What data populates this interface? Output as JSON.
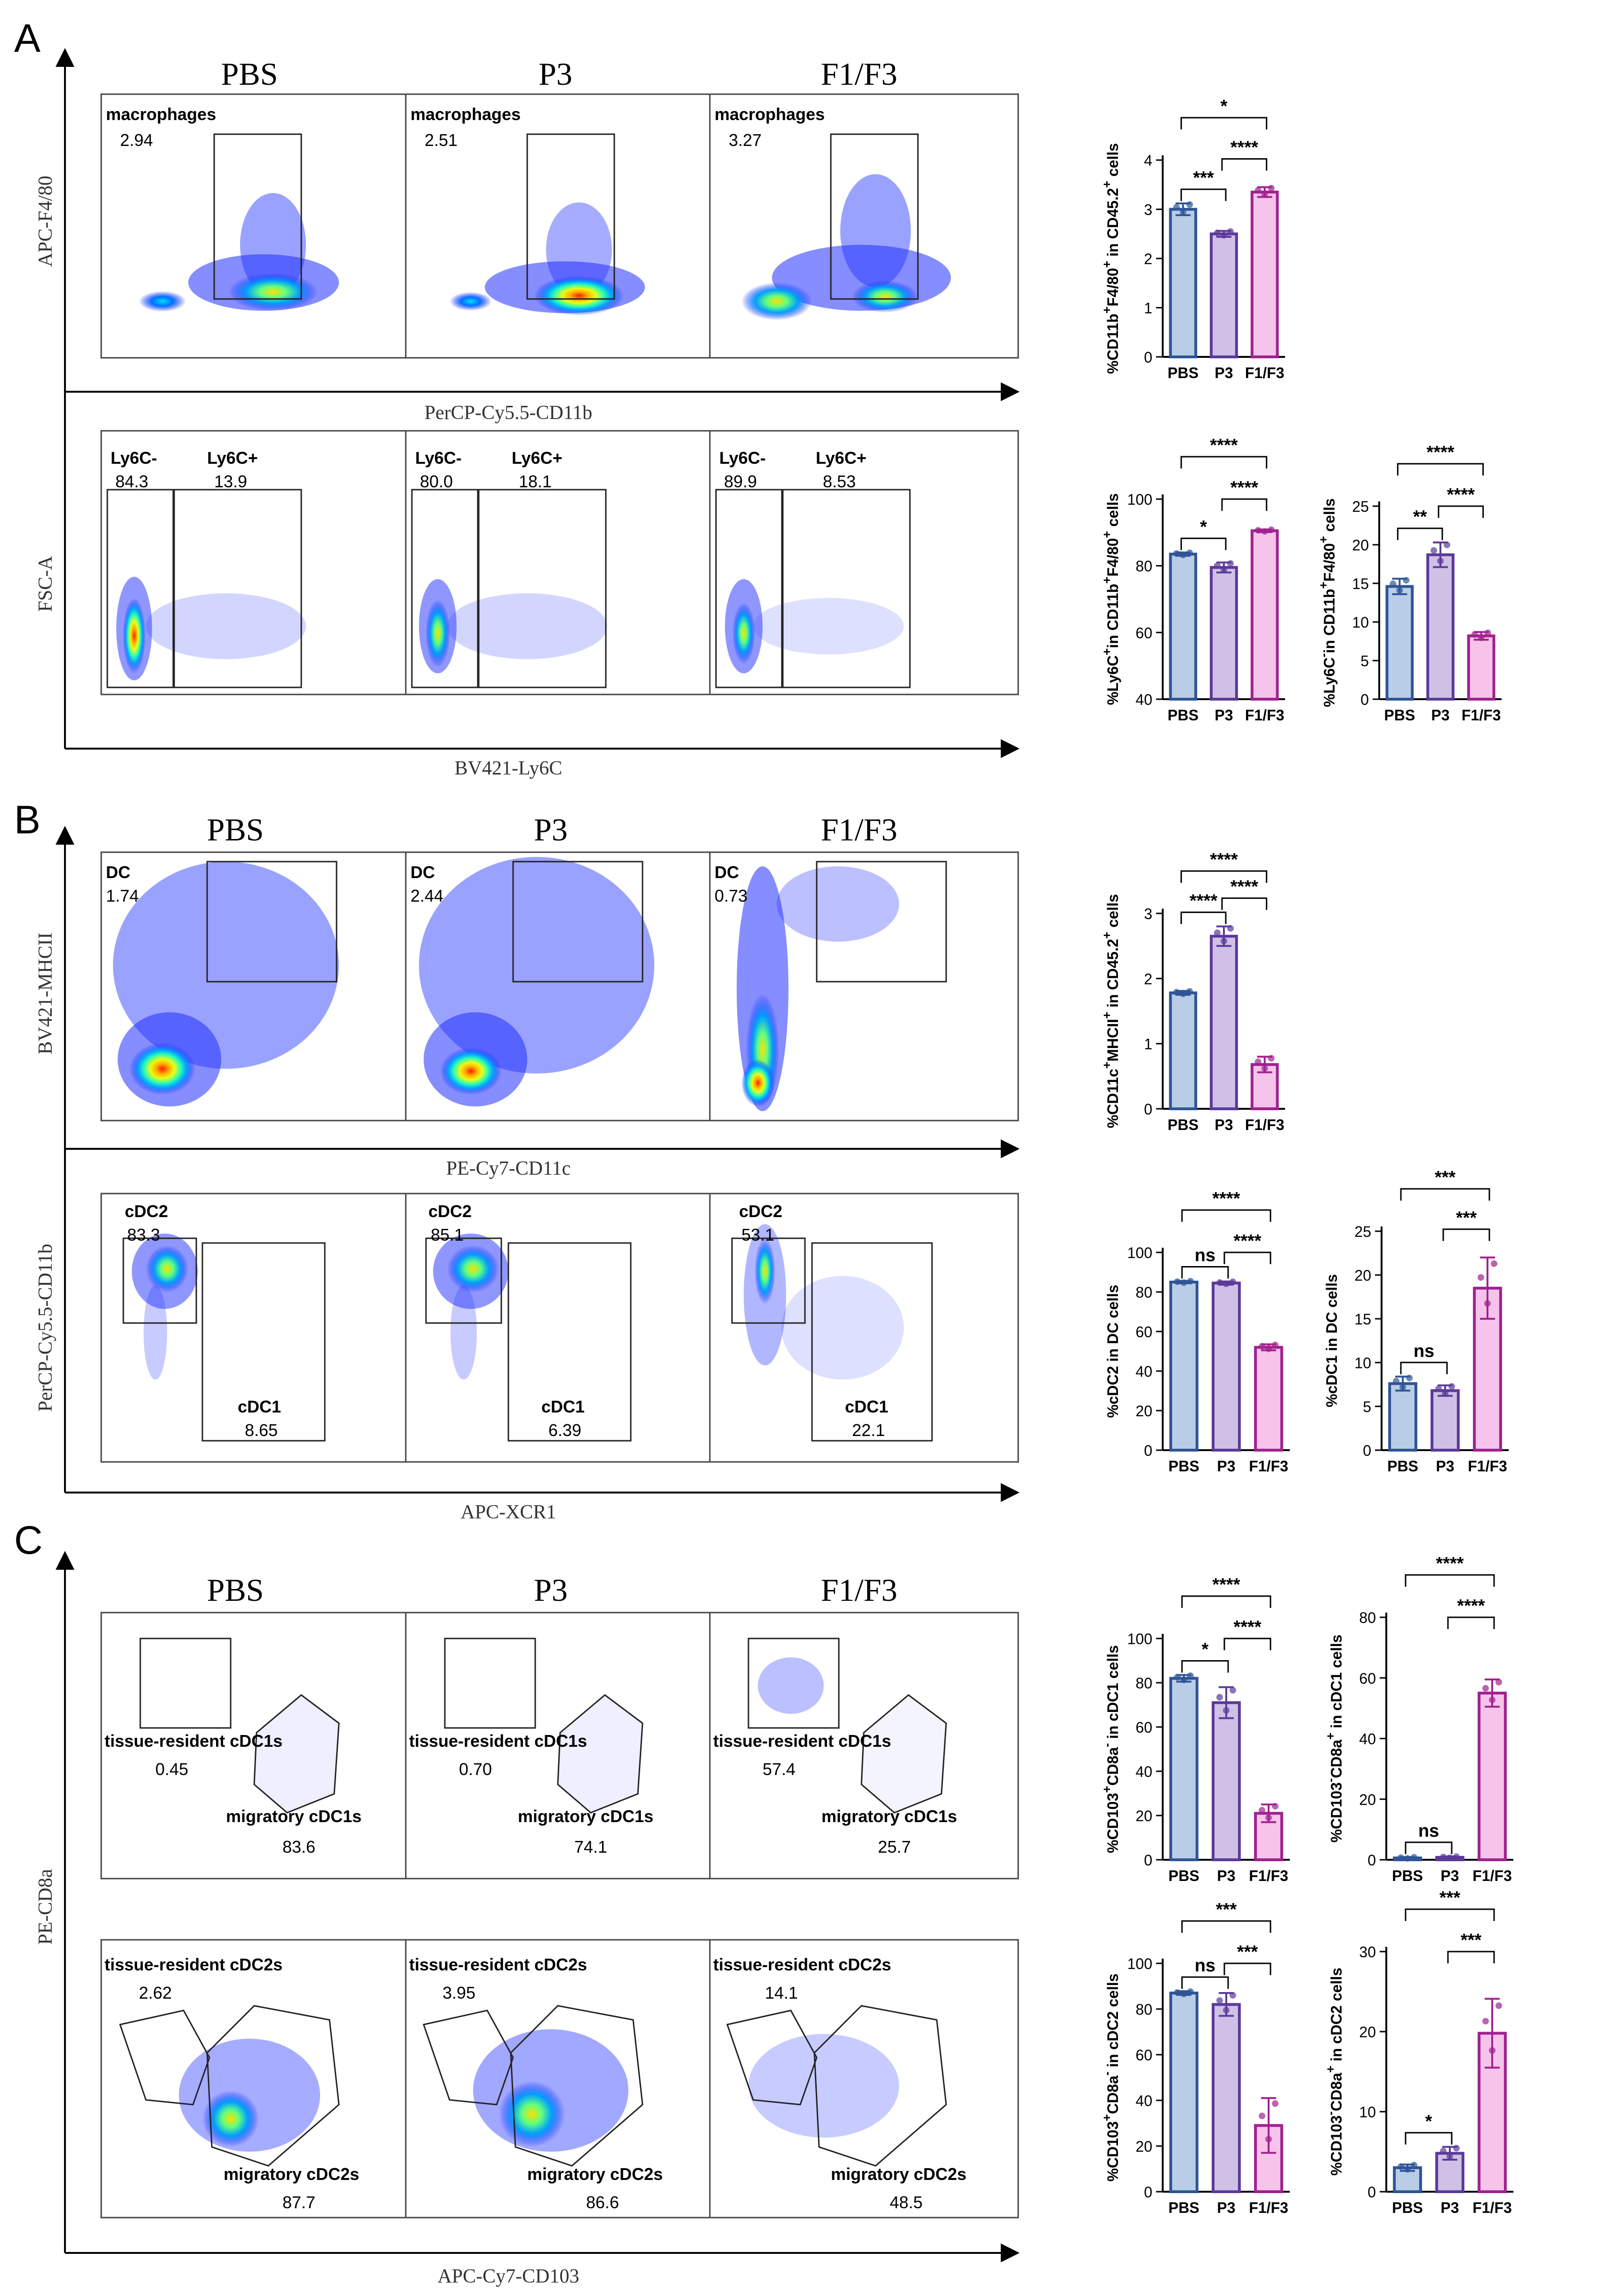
{
  "panels": [
    {
      "letter": "A",
      "flow_rows": [
        {
          "y_label": "APC-F4/80",
          "x_label": "PerCP-Cy5.5-CD11b",
          "plots": [
            {
              "title": "PBS",
              "gates": [
                {
                  "name": "macrophages",
                  "value": "2.94"
                }
              ]
            },
            {
              "title": "P3",
              "gates": [
                {
                  "name": "macrophages",
                  "value": "2.51"
                }
              ]
            },
            {
              "title": "F1/F3",
              "gates": [
                {
                  "name": "macrophages",
                  "value": "3.27"
                }
              ]
            }
          ]
        },
        {
          "y_label": "FSC-A",
          "x_label": "BV421-Ly6C",
          "plots": [
            {
              "title": "",
              "gates": [
                {
                  "name": "Ly6C-",
                  "value": "84.3"
                },
                {
                  "name": "Ly6C+",
                  "value": "13.9"
                }
              ]
            },
            {
              "title": "",
              "gates": [
                {
                  "name": "Ly6C-",
                  "value": "80.0"
                },
                {
                  "name": "Ly6C+",
                  "value": "18.1"
                }
              ]
            },
            {
              "title": "",
              "gates": [
                {
                  "name": "Ly6C-",
                  "value": "89.9"
                },
                {
                  "name": "Ly6C+",
                  "value": "8.53"
                }
              ]
            }
          ]
        }
      ]
    },
    {
      "letter": "B",
      "flow_rows": [
        {
          "y_label": "BV421-MHCII",
          "x_label": "PE-Cy7-CD11c",
          "plots": [
            {
              "title": "PBS",
              "gates": [
                {
                  "name": "DC",
                  "value": "1.74"
                }
              ]
            },
            {
              "title": "P3",
              "gates": [
                {
                  "name": "DC",
                  "value": "2.44"
                }
              ]
            },
            {
              "title": "F1/F3",
              "gates": [
                {
                  "name": "DC",
                  "value": "0.73"
                }
              ]
            }
          ]
        },
        {
          "y_label": "PerCP-Cy5.5-CD11b",
          "x_label": "APC-XCR1",
          "plots": [
            {
              "title": "",
              "gates": [
                {
                  "name": "cDC2",
                  "value": "83.3"
                },
                {
                  "name": "cDC1",
                  "value": "8.65"
                }
              ]
            },
            {
              "title": "",
              "gates": [
                {
                  "name": "cDC2",
                  "value": "85.1"
                },
                {
                  "name": "cDC1",
                  "value": "6.39"
                }
              ]
            },
            {
              "title": "",
              "gates": [
                {
                  "name": "cDC2",
                  "value": "53.1"
                },
                {
                  "name": "cDC1",
                  "value": "22.1"
                }
              ]
            }
          ]
        }
      ]
    },
    {
      "letter": "C",
      "y_label": "PE-CD8a",
      "x_label": "APC-Cy7-CD103",
      "flow_rows": [
        {
          "plots": [
            {
              "title": "PBS",
              "gates": [
                {
                  "name": "tissue-resident cDC1s",
                  "value": "0.45"
                },
                {
                  "name": "migratory cDC1s",
                  "value": "83.6"
                }
              ]
            },
            {
              "title": "P3",
              "gates": [
                {
                  "name": "tissue-resident cDC1s",
                  "value": "0.70"
                },
                {
                  "name": "migratory cDC1s",
                  "value": "74.1"
                }
              ]
            },
            {
              "title": "F1/F3",
              "gates": [
                {
                  "name": "tissue-resident cDC1s",
                  "value": "57.4"
                },
                {
                  "name": "migratory cDC1s",
                  "value": "25.7"
                }
              ]
            }
          ]
        },
        {
          "plots": [
            {
              "title": "",
              "gates": [
                {
                  "name": "tissue-resident cDC2s",
                  "value": "2.62"
                },
                {
                  "name": "migratory cDC2s",
                  "value": "87.7"
                }
              ]
            },
            {
              "title": "",
              "gates": [
                {
                  "name": "tissue-resident cDC2s",
                  "value": "3.95"
                },
                {
                  "name": "migratory cDC2s",
                  "value": "86.6"
                }
              ]
            },
            {
              "title": "",
              "gates": [
                {
                  "name": "tissue-resident cDC2s",
                  "value": "14.1"
                },
                {
                  "name": "migratory cDC2s",
                  "value": "48.5"
                }
              ]
            }
          ]
        }
      ]
    }
  ],
  "colors": {
    "PBS": {
      "fill": "#b9cde6",
      "stroke": "#2f5597"
    },
    "P3": {
      "fill": "#cfc1e6",
      "stroke": "#5b3a9a"
    },
    "F1/F3": {
      "fill": "#f6c3ea",
      "stroke": "#a0228f"
    }
  },
  "chart_data": [
    {
      "type": "bar",
      "panel": "A",
      "ylabel": "%CD11b+F4/80+ in CD45.2+ cells",
      "categories": [
        "PBS",
        "P3",
        "F1/F3"
      ],
      "values": [
        3.0,
        2.5,
        3.35
      ],
      "errors": [
        0.12,
        0.06,
        0.1
      ],
      "ylim": [
        0,
        4
      ],
      "yticks": [
        0,
        1,
        2,
        3,
        4
      ],
      "sig": [
        {
          "from": 0,
          "to": 1,
          "label": "***"
        },
        {
          "from": 1,
          "to": 2,
          "label": "****"
        },
        {
          "from": 0,
          "to": 2,
          "label": "*"
        }
      ]
    },
    {
      "type": "bar",
      "panel": "A",
      "ylabel": "%Ly6C+in CD11b+F4/80+ cells",
      "categories": [
        "PBS",
        "P3",
        "F1/F3"
      ],
      "values": [
        83.5,
        79.5,
        90.5
      ],
      "errors": [
        0.5,
        1.5,
        0.4
      ],
      "ylim": [
        40,
        100
      ],
      "yticks": [
        40,
        60,
        80,
        100
      ],
      "sig": [
        {
          "from": 0,
          "to": 1,
          "label": "*"
        },
        {
          "from": 1,
          "to": 2,
          "label": "****"
        },
        {
          "from": 0,
          "to": 2,
          "label": "****"
        }
      ]
    },
    {
      "type": "bar",
      "panel": "A",
      "ylabel": "%Ly6C-in CD11b+F4/80+ cells",
      "categories": [
        "PBS",
        "P3",
        "F1/F3"
      ],
      "values": [
        14.6,
        18.7,
        8.2
      ],
      "errors": [
        1.0,
        1.6,
        0.5
      ],
      "ylim": [
        0,
        25
      ],
      "yticks": [
        0,
        5,
        10,
        15,
        20,
        25
      ],
      "sig": [
        {
          "from": 0,
          "to": 1,
          "label": "**"
        },
        {
          "from": 1,
          "to": 2,
          "label": "****"
        },
        {
          "from": 0,
          "to": 2,
          "label": "****"
        }
      ]
    },
    {
      "type": "bar",
      "panel": "B",
      "ylabel": "%CD11c+MHCII+ in CD45.2+ cells",
      "categories": [
        "PBS",
        "P3",
        "F1/F3"
      ],
      "values": [
        1.78,
        2.65,
        0.68
      ],
      "errors": [
        0.03,
        0.15,
        0.12
      ],
      "ylim": [
        0,
        3
      ],
      "yticks": [
        0,
        1,
        2,
        3
      ],
      "sig": [
        {
          "from": 0,
          "to": 1,
          "label": "****"
        },
        {
          "from": 1,
          "to": 2,
          "label": "****"
        },
        {
          "from": 0,
          "to": 2,
          "label": "****"
        }
      ]
    },
    {
      "type": "bar",
      "panel": "B",
      "ylabel": "%cDC2 in DC cells",
      "categories": [
        "PBS",
        "P3",
        "F1/F3"
      ],
      "values": [
        85,
        84.5,
        52
      ],
      "errors": [
        0.6,
        0.8,
        1.5
      ],
      "ylim": [
        0,
        100
      ],
      "yticks": [
        0,
        20,
        40,
        60,
        80,
        100
      ],
      "sig": [
        {
          "from": 0,
          "to": 1,
          "label": "ns"
        },
        {
          "from": 1,
          "to": 2,
          "label": "****"
        },
        {
          "from": 0,
          "to": 2,
          "label": "****"
        }
      ]
    },
    {
      "type": "bar",
      "panel": "B",
      "ylabel": "%cDC1 in DC cells",
      "categories": [
        "PBS",
        "P3",
        "F1/F3"
      ],
      "values": [
        7.6,
        6.8,
        18.5
      ],
      "errors": [
        0.8,
        0.6,
        3.5
      ],
      "ylim": [
        0,
        25
      ],
      "yticks": [
        0,
        5,
        10,
        15,
        20,
        25
      ],
      "sig": [
        {
          "from": 0,
          "to": 1,
          "label": "ns"
        },
        {
          "from": 1,
          "to": 2,
          "label": "***"
        },
        {
          "from": 0,
          "to": 2,
          "label": "***"
        }
      ]
    },
    {
      "type": "bar",
      "panel": "C",
      "ylabel": "%CD103+CD8a- in cDC1 cells",
      "categories": [
        "PBS",
        "P3",
        "F1/F3"
      ],
      "values": [
        82,
        71,
        21
      ],
      "errors": [
        1.5,
        7,
        4
      ],
      "ylim": [
        0,
        100
      ],
      "yticks": [
        0,
        20,
        40,
        60,
        80,
        100
      ],
      "sig": [
        {
          "from": 0,
          "to": 1,
          "label": "*"
        },
        {
          "from": 1,
          "to": 2,
          "label": "****"
        },
        {
          "from": 0,
          "to": 2,
          "label": "****"
        }
      ]
    },
    {
      "type": "bar",
      "panel": "C",
      "ylabel": "%CD103-CD8a+ in cDC1 cells",
      "categories": [
        "PBS",
        "P3",
        "F1/F3"
      ],
      "values": [
        0.6,
        0.8,
        55
      ],
      "errors": [
        0.3,
        0.3,
        4.5
      ],
      "ylim": [
        0,
        80
      ],
      "yticks": [
        0,
        20,
        40,
        60,
        80
      ],
      "sig": [
        {
          "from": 0,
          "to": 1,
          "label": "ns"
        },
        {
          "from": 1,
          "to": 2,
          "label": "****"
        },
        {
          "from": 0,
          "to": 2,
          "label": "****"
        }
      ]
    },
    {
      "type": "bar",
      "panel": "C",
      "ylabel": "%CD103+CD8a- in cDC2 cells",
      "categories": [
        "PBS",
        "P3",
        "F1/F3"
      ],
      "values": [
        87,
        82,
        29
      ],
      "errors": [
        0.8,
        5,
        12
      ],
      "ylim": [
        0,
        100
      ],
      "yticks": [
        0,
        20,
        40,
        60,
        80,
        100
      ],
      "sig": [
        {
          "from": 0,
          "to": 1,
          "label": "ns"
        },
        {
          "from": 1,
          "to": 2,
          "label": "***"
        },
        {
          "from": 0,
          "to": 2,
          "label": "***"
        }
      ]
    },
    {
      "type": "bar",
      "panel": "C",
      "ylabel": "%CD103-CD8a+ in cDC2 cells",
      "categories": [
        "PBS",
        "P3",
        "F1/F3"
      ],
      "values": [
        3.0,
        4.8,
        19.8
      ],
      "errors": [
        0.4,
        0.8,
        4.3
      ],
      "ylim": [
        0,
        30
      ],
      "yticks": [
        0,
        10,
        20,
        30
      ],
      "sig": [
        {
          "from": 0,
          "to": 1,
          "label": "*"
        },
        {
          "from": 1,
          "to": 2,
          "label": "***"
        },
        {
          "from": 0,
          "to": 2,
          "label": "***"
        }
      ]
    }
  ]
}
